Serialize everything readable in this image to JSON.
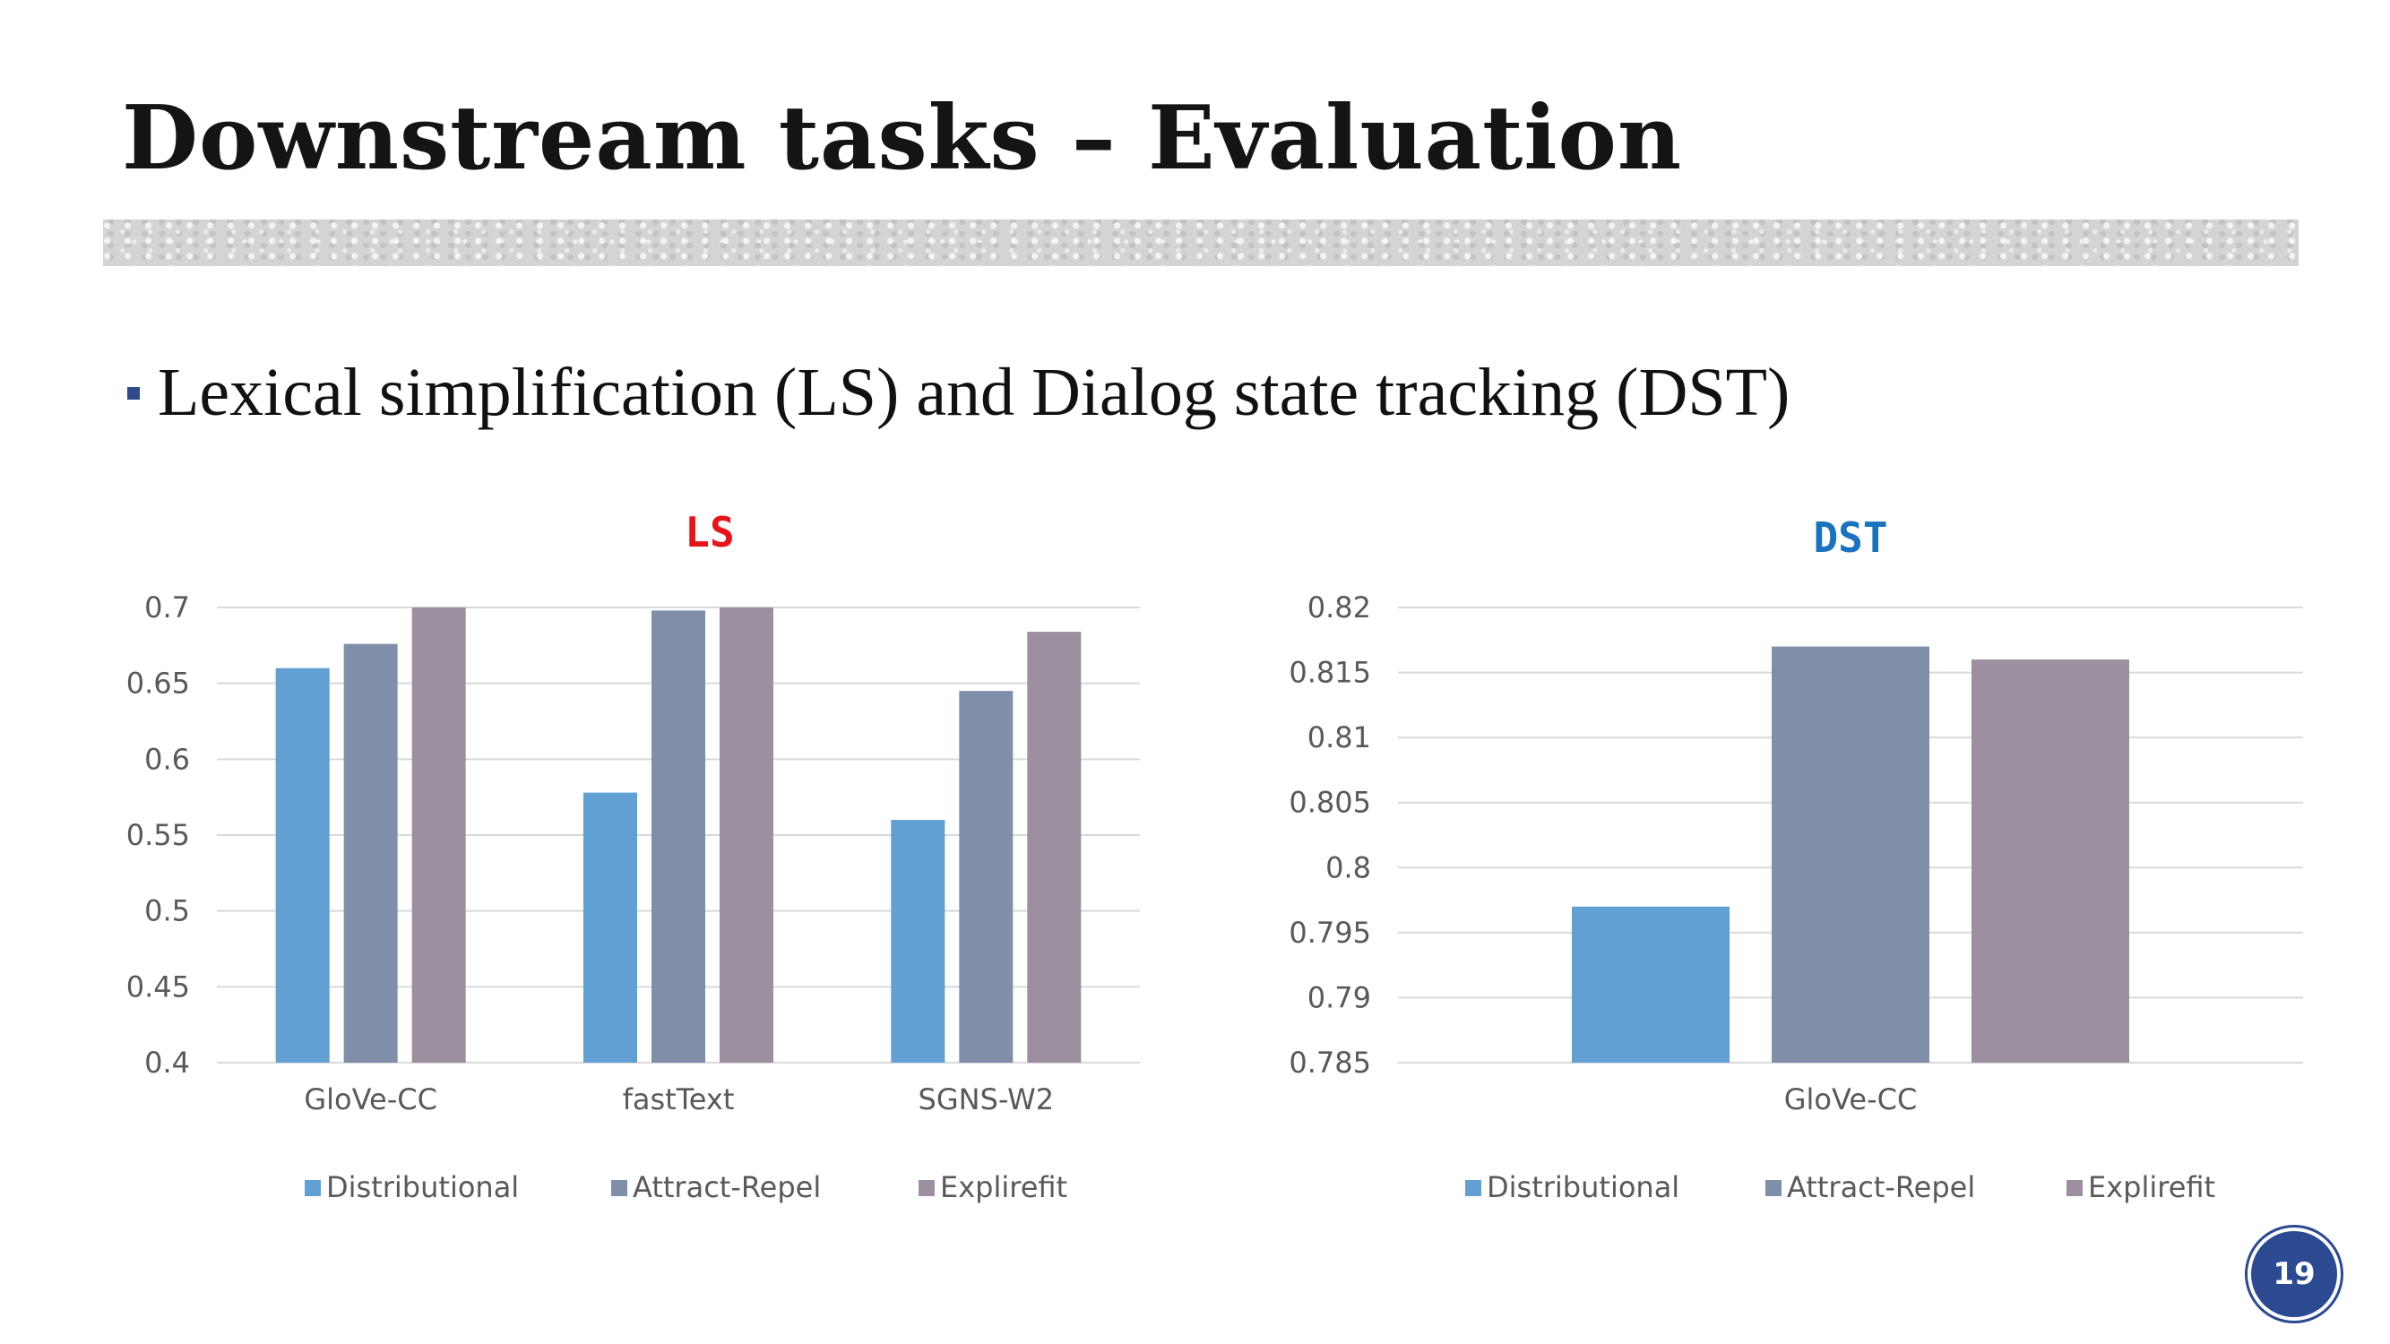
{
  "slide": {
    "title": "Downstream tasks – Evaluation",
    "bullet": "Lexical simplification (LS) and Dialog state tracking (DST)",
    "page_number": "19"
  },
  "colors": {
    "Distributional": "#629fd2",
    "Attract-Repel": "#7f8fa9",
    "Explirefit": "#9c8fa0",
    "ls_title": "#e8141b",
    "dst_title": "#1b73c0"
  },
  "chart_data": [
    {
      "type": "bar",
      "title": "LS",
      "categories": [
        "GloVe-CC",
        "fastText",
        "SGNS-W2"
      ],
      "series": [
        {
          "name": "Distributional",
          "values": [
            0.66,
            0.578,
            0.56
          ]
        },
        {
          "name": "Attract-Repel",
          "values": [
            0.676,
            0.698,
            0.645
          ]
        },
        {
          "name": "Explirefit",
          "values": [
            0.7,
            0.7,
            0.684
          ]
        }
      ],
      "ylim": [
        0.4,
        0.7
      ],
      "yticks": [
        "0.4",
        "0.45",
        "0.5",
        "0.55",
        "0.6",
        "0.65",
        "0.7"
      ],
      "grid": true,
      "legend": "bottom"
    },
    {
      "type": "bar",
      "title": "DST",
      "categories": [
        "GloVe-CC"
      ],
      "series": [
        {
          "name": "Distributional",
          "values": [
            0.797
          ]
        },
        {
          "name": "Attract-Repel",
          "values": [
            0.817
          ]
        },
        {
          "name": "Explirefit",
          "values": [
            0.816
          ]
        }
      ],
      "ylim": [
        0.785,
        0.82
      ],
      "yticks": [
        "0.785",
        "0.79",
        "0.795",
        "0.8",
        "0.805",
        "0.81",
        "0.815",
        "0.82"
      ],
      "grid": true,
      "legend": "bottom"
    }
  ]
}
